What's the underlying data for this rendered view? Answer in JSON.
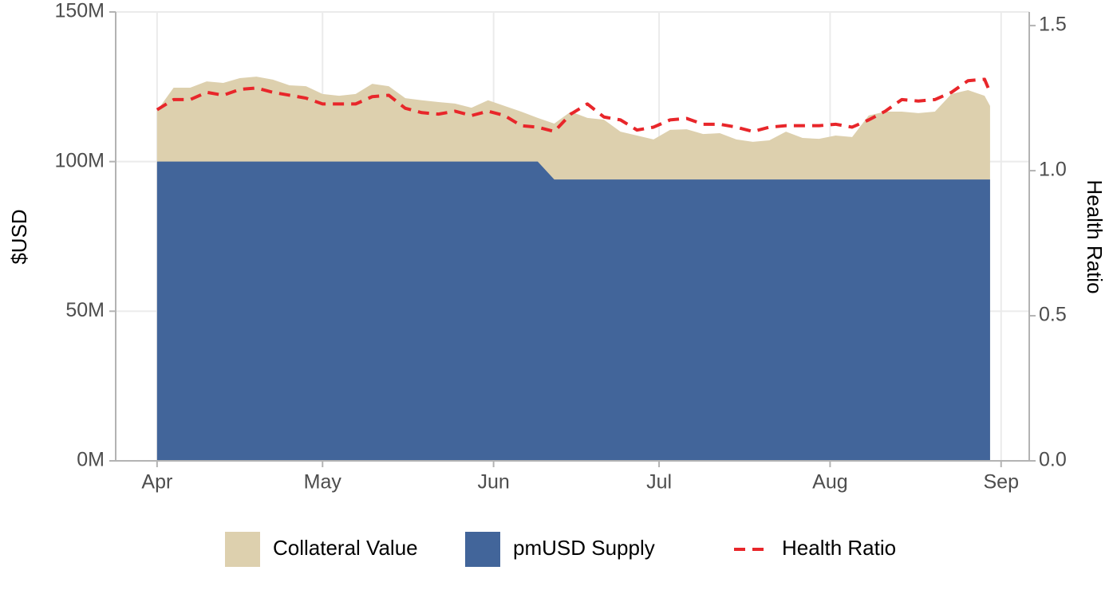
{
  "chart_data": {
    "type": "area",
    "x": [
      0,
      3,
      6,
      9,
      12,
      15,
      18,
      21,
      24,
      27,
      30,
      33,
      36,
      39,
      42,
      45,
      48,
      51,
      54,
      57,
      60,
      63,
      66,
      69,
      72,
      75,
      78,
      81,
      84,
      87,
      90,
      93,
      96,
      99,
      102,
      105,
      108,
      111,
      114,
      117,
      120,
      123,
      126,
      129,
      132,
      135,
      138,
      141,
      144,
      147,
      150,
      151
    ],
    "xlim": [
      -7.5,
      158.1
    ],
    "xticks": [
      {
        "value": 0,
        "label": "Apr"
      },
      {
        "value": 30,
        "label": "May"
      },
      {
        "value": 61,
        "label": "Jun"
      },
      {
        "value": 91,
        "label": "Jul"
      },
      {
        "value": 122,
        "label": "Aug"
      },
      {
        "value": 153,
        "label": "Sep"
      }
    ],
    "ylabel": "$USD",
    "ylim": [
      0,
      150000000
    ],
    "yticks": [
      {
        "value": 0,
        "label": "0M"
      },
      {
        "value": 50000000,
        "label": "50M"
      },
      {
        "value": 100000000,
        "label": "100M"
      },
      {
        "value": 150000000,
        "label": "150M"
      }
    ],
    "y2label": "Health Ratio",
    "y2lim": [
      0,
      1.547
    ],
    "y2ticks": [
      {
        "value": 0,
        "label": "0.0"
      },
      0.5,
      {
        "value": 1,
        "label": "1.0"
      },
      1.5
    ],
    "grid": true,
    "legend": "bottom",
    "series": [
      {
        "name": "Collateral Value",
        "type": "area",
        "color": "#ddd0ae",
        "values": [
          117000000,
          124700000,
          124700000,
          126800000,
          126300000,
          127900000,
          128400000,
          127400000,
          125500000,
          125200000,
          122600000,
          122000000,
          122600000,
          126000000,
          125200000,
          121200000,
          120500000,
          119900000,
          119400000,
          118000000,
          120500000,
          118600000,
          116700000,
          114600000,
          112700000,
          116700000,
          114600000,
          114000000,
          110000000,
          108700000,
          107400000,
          110600000,
          110800000,
          109200000,
          109500000,
          107400000,
          106600000,
          107100000,
          110000000,
          107900000,
          107600000,
          108700000,
          108200000,
          115400000,
          116700000,
          116700000,
          116200000,
          116700000,
          122600000,
          123900000,
          122000000,
          118600000
        ]
      },
      {
        "name": "pmUSD Supply",
        "type": "area",
        "color": "#42659a",
        "values": [
          100000000,
          100000000,
          100000000,
          100000000,
          100000000,
          100000000,
          100000000,
          100000000,
          100000000,
          100000000,
          100000000,
          100000000,
          100000000,
          100000000,
          100000000,
          100000000,
          100000000,
          100000000,
          100000000,
          100000000,
          100000000,
          100000000,
          100000000,
          100000000,
          94000000,
          94000000,
          94000000,
          94000000,
          94000000,
          94000000,
          94000000,
          94000000,
          94000000,
          94000000,
          94000000,
          94000000,
          94000000,
          94000000,
          94000000,
          94000000,
          94000000,
          94000000,
          94000000,
          94000000,
          94000000,
          94000000,
          94000000,
          94000000,
          94000000,
          94000000,
          94000000,
          94000000
        ]
      },
      {
        "name": "Health Ratio",
        "type": "line",
        "axis": "y2",
        "color": "#e8262a",
        "dashed": true,
        "values": [
          1.21,
          1.245,
          1.245,
          1.27,
          1.26,
          1.28,
          1.285,
          1.27,
          1.26,
          1.25,
          1.23,
          1.23,
          1.23,
          1.255,
          1.26,
          1.215,
          1.2,
          1.195,
          1.205,
          1.19,
          1.205,
          1.19,
          1.155,
          1.15,
          1.135,
          1.195,
          1.23,
          1.185,
          1.175,
          1.14,
          1.15,
          1.175,
          1.18,
          1.16,
          1.16,
          1.15,
          1.135,
          1.15,
          1.155,
          1.155,
          1.155,
          1.16,
          1.15,
          1.175,
          1.205,
          1.245,
          1.24,
          1.245,
          1.27,
          1.31,
          1.315,
          1.27
        ]
      }
    ]
  }
}
